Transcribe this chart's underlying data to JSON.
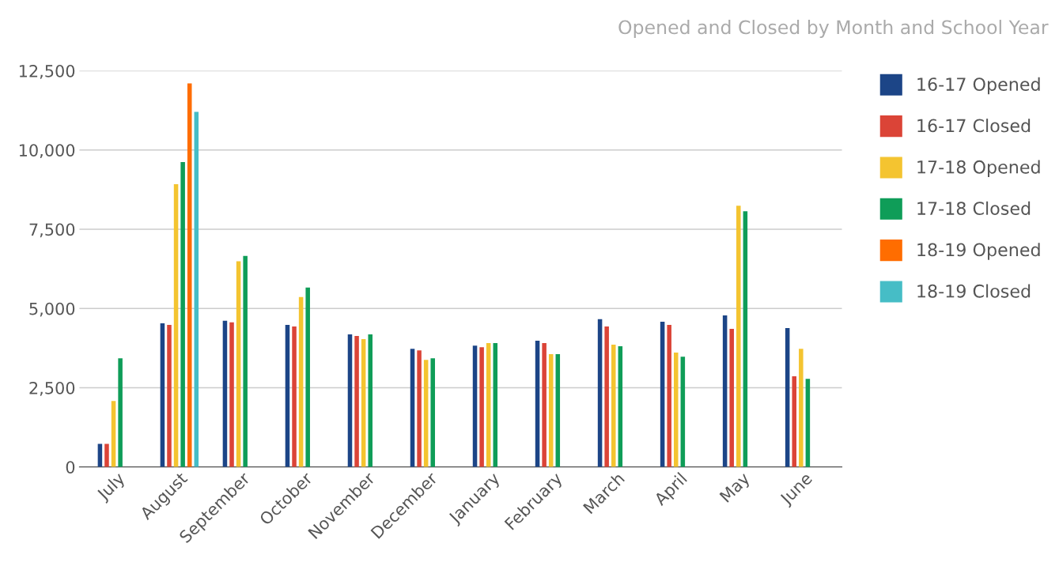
{
  "chart_data": {
    "type": "bar",
    "title": "Opened and Closed by Month and School Year",
    "categories": [
      "July",
      "August",
      "September",
      "October",
      "November",
      "December",
      "January",
      "February",
      "March",
      "April",
      "May",
      "June"
    ],
    "series": [
      {
        "name": "16-17 Opened",
        "color": "#1c4587",
        "values": [
          730,
          4530,
          4610,
          4480,
          4180,
          3730,
          3830,
          3980,
          4660,
          4580,
          4780,
          4380
        ]
      },
      {
        "name": "16-17 Closed",
        "color": "#db4437",
        "values": [
          730,
          4480,
          4560,
          4430,
          4130,
          3680,
          3780,
          3910,
          4430,
          4480,
          4360,
          2860
        ]
      },
      {
        "name": "17-18 Opened",
        "color": "#f4c430",
        "values": [
          2080,
          8920,
          6490,
          5360,
          4030,
          3380,
          3910,
          3560,
          3860,
          3610,
          8240,
          3730
        ]
      },
      {
        "name": "17-18 Closed",
        "color": "#0f9d58",
        "values": [
          3430,
          9620,
          6660,
          5660,
          4180,
          3430,
          3910,
          3560,
          3810,
          3480,
          8070,
          2780
        ]
      },
      {
        "name": "18-19 Opened",
        "color": "#ff6d00",
        "values": [
          null,
          12100,
          null,
          null,
          null,
          null,
          null,
          null,
          null,
          null,
          null,
          null
        ]
      },
      {
        "name": "18-19 Closed",
        "color": "#46bdc6",
        "values": [
          null,
          11200,
          null,
          null,
          null,
          null,
          null,
          null,
          null,
          null,
          null,
          null
        ]
      }
    ],
    "ylim": [
      0,
      12500
    ],
    "yticks": [
      {
        "value": 0,
        "label": "0"
      },
      {
        "value": 2500,
        "label": "2,500"
      },
      {
        "value": 5000,
        "label": "5,000"
      },
      {
        "value": 7500,
        "label": "7,500"
      },
      {
        "value": 10000,
        "label": "10,000"
      },
      {
        "value": 12500,
        "label": "12,500"
      }
    ],
    "grid": "y",
    "legend": "right"
  }
}
